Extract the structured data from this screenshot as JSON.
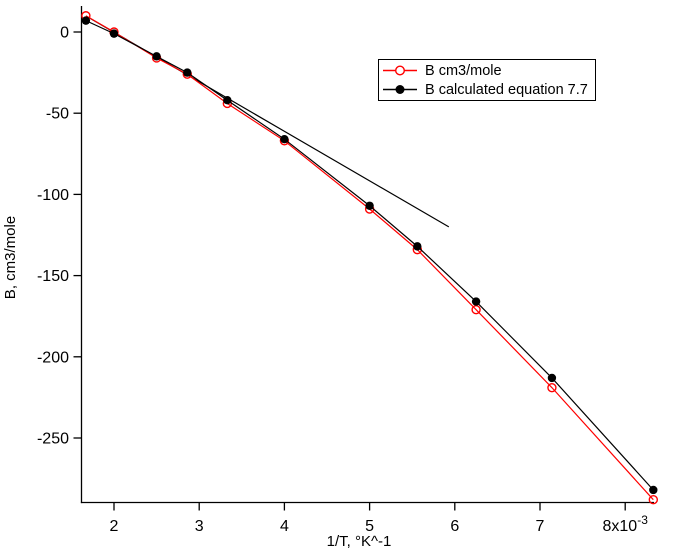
{
  "chart_data": {
    "type": "line",
    "title": "",
    "xlabel": "1/T, °K^-1",
    "ylabel": "B, cm3/mole",
    "x_unit_note": "x-axis values are in units of 10^-3 (inverse kelvin); last tick label carries the exponent",
    "x_ticks": [
      {
        "value": 2,
        "label": "2"
      },
      {
        "value": 3,
        "label": "3"
      },
      {
        "value": 4,
        "label": "4"
      },
      {
        "value": 5,
        "label": "5"
      },
      {
        "value": 6,
        "label": "6"
      },
      {
        "value": 7,
        "label": "7"
      },
      {
        "value": 8,
        "label": "8x10^-3"
      }
    ],
    "y_ticks": [
      {
        "value": 0,
        "label": "0"
      },
      {
        "value": -50,
        "label": "-50"
      },
      {
        "value": -100,
        "label": "-100"
      },
      {
        "value": -150,
        "label": "-150"
      },
      {
        "value": -200,
        "label": "-200"
      },
      {
        "value": -250,
        "label": "-250"
      }
    ],
    "xlim": [
      1.62,
      8.34
    ],
    "ylim": [
      -290,
      16
    ],
    "grid": false,
    "axes_frame": "left-and-bottom-only",
    "legend": {
      "position": "upper-right",
      "bordered": true
    },
    "x": [
      1.67,
      2.0,
      2.5,
      2.86,
      3.33,
      4.0,
      5.0,
      5.56,
      6.25,
      7.14,
      8.33
    ],
    "series": [
      {
        "name": "B cm3/mole",
        "color": "#ff0000",
        "marker": "open-circle",
        "values": [
          10,
          0,
          -16,
          -26,
          -44,
          -67,
          -109,
          -134,
          -171,
          -219,
          -288
        ]
      },
      {
        "name": "B calculated equation 7.7",
        "color": "#000000",
        "marker": "filled-circle",
        "values": [
          7,
          -1,
          -15,
          -25,
          -42,
          -66,
          -107,
          -132,
          -166,
          -213,
          -282
        ]
      }
    ],
    "tangent_line": {
      "description": "straight black line tangent to the high-temperature end of the curve",
      "x": [
        1.7,
        5.93
      ],
      "y": [
        9,
        -120
      ],
      "color": "#000000"
    }
  }
}
